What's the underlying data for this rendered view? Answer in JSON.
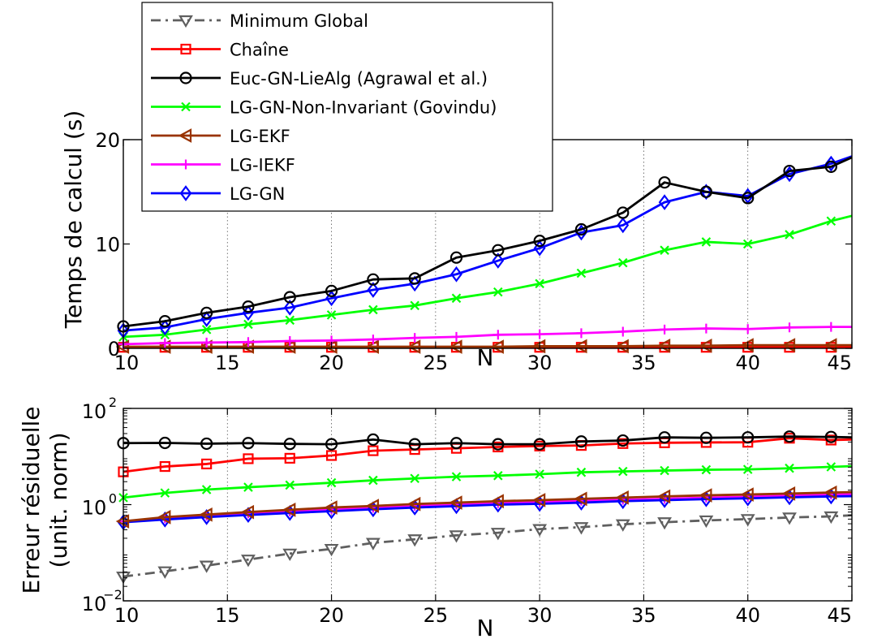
{
  "legend": {
    "entries": [
      {
        "label": "Minimum Global",
        "color": "#5f5f5f",
        "marker": "triangle-down",
        "dash": "dashdot"
      },
      {
        "label": "Chaîne",
        "color": "#ff0000",
        "marker": "square",
        "dash": "solid"
      },
      {
        "label": "Euc-GN-LieAlg (Agrawal et al.)",
        "color": "#000000",
        "marker": "circle",
        "dash": "solid"
      },
      {
        "label": "LG-GN-Non-Invariant (Govindu)",
        "color": "#00ff00",
        "marker": "x",
        "dash": "solid"
      },
      {
        "label": "LG-EKF",
        "color": "#993300",
        "marker": "triangle-left",
        "dash": "solid"
      },
      {
        "label": "LG-IEKF",
        "color": "#ff00ff",
        "marker": "plus",
        "dash": "solid"
      },
      {
        "label": "LG-GN",
        "color": "#0000ff",
        "marker": "diamond",
        "dash": "solid"
      }
    ]
  },
  "chart_data": [
    {
      "type": "line",
      "xlabel": "N",
      "ylabel": "Temps de calcul (s)",
      "xlim": [
        10,
        45
      ],
      "ylim": [
        0,
        20
      ],
      "xticks": [
        10,
        15,
        20,
        25,
        30,
        35,
        40,
        45
      ],
      "yticks": [
        0,
        10,
        20
      ],
      "xtick_labels": [
        "10",
        "15",
        "20",
        "25",
        "30",
        "35",
        "40",
        "45"
      ],
      "ytick_labels": [
        "0",
        "10",
        "20"
      ],
      "x": [
        10,
        12,
        14,
        16,
        18,
        20,
        22,
        24,
        26,
        28,
        30,
        32,
        34,
        36,
        38,
        40,
        42,
        44,
        45
      ],
      "grid": "x-dotted",
      "series": [
        {
          "name": "Chaîne",
          "color": "#ff0000",
          "marker": "square",
          "values": [
            0.1,
            0.1,
            0.1,
            0.1,
            0.1,
            0.1,
            0.1,
            0.1,
            0.1,
            0.1,
            0.1,
            0.1,
            0.1,
            0.1,
            0.1,
            0.1,
            0.1,
            0.1,
            0.1
          ]
        },
        {
          "name": "LG-EKF",
          "color": "#993300",
          "marker": "triangle-left",
          "values": [
            0.15,
            0.15,
            0.15,
            0.15,
            0.15,
            0.15,
            0.15,
            0.15,
            0.15,
            0.15,
            0.2,
            0.2,
            0.2,
            0.25,
            0.25,
            0.3,
            0.3,
            0.3,
            0.3
          ]
        },
        {
          "name": "LG-IEKF",
          "color": "#ff00ff",
          "marker": "plus",
          "values": [
            0.4,
            0.5,
            0.55,
            0.6,
            0.7,
            0.75,
            0.85,
            1.0,
            1.1,
            1.3,
            1.35,
            1.45,
            1.6,
            1.8,
            1.9,
            1.85,
            2.0,
            2.05,
            2.05
          ]
        },
        {
          "name": "LG-GN-Non-Invariant (Govindu)",
          "color": "#00ff00",
          "marker": "x",
          "values": [
            1.1,
            1.3,
            1.8,
            2.3,
            2.7,
            3.2,
            3.7,
            4.1,
            4.8,
            5.4,
            6.2,
            7.2,
            8.2,
            9.4,
            10.2,
            10.0,
            10.9,
            12.2,
            12.7
          ]
        },
        {
          "name": "LG-GN",
          "color": "#0000ff",
          "marker": "diamond",
          "values": [
            1.7,
            2.0,
            2.8,
            3.4,
            3.9,
            4.8,
            5.6,
            6.2,
            7.1,
            8.4,
            9.6,
            11.1,
            11.8,
            14.0,
            15.0,
            14.6,
            16.7,
            17.7,
            18.4
          ]
        },
        {
          "name": "Euc-GN-LieAlg (Agrawal et al.)",
          "color": "#000000",
          "marker": "circle",
          "values": [
            2.1,
            2.6,
            3.4,
            4.0,
            4.9,
            5.5,
            6.6,
            6.7,
            8.7,
            9.4,
            10.3,
            11.4,
            13.0,
            15.9,
            15.0,
            14.4,
            17.0,
            17.4,
            18.3
          ]
        }
      ]
    },
    {
      "type": "line",
      "xlabel": "N",
      "ylabel": "Erreur résiduelle (unit. norm)",
      "ylabel_lines": [
        "Erreur résiduelle",
        "(unit. norm)"
      ],
      "xlim": [
        10,
        45
      ],
      "ylim": [
        0.01,
        100
      ],
      "yscale": "log",
      "xticks": [
        10,
        15,
        20,
        25,
        30,
        35,
        40,
        45
      ],
      "xtick_labels": [
        "10",
        "15",
        "20",
        "25",
        "30",
        "35",
        "40",
        "45"
      ],
      "yticks": [
        0.01,
        1,
        100
      ],
      "ytick_labels": [
        {
          "base": "10",
          "exp": "−2"
        },
        {
          "base": "10",
          "exp": "0"
        },
        {
          "base": "10",
          "exp": "2"
        }
      ],
      "x": [
        10,
        12,
        14,
        16,
        18,
        20,
        22,
        24,
        26,
        28,
        30,
        32,
        34,
        36,
        38,
        40,
        42,
        44,
        45
      ],
      "grid": "x-dotted",
      "series": [
        {
          "name": "Minimum Global",
          "color": "#5f5f5f",
          "marker": "triangle-down",
          "dash": "dashdot",
          "values": [
            0.032,
            0.041,
            0.054,
            0.072,
            0.096,
            0.12,
            0.16,
            0.19,
            0.23,
            0.26,
            0.31,
            0.34,
            0.39,
            0.43,
            0.47,
            0.5,
            0.54,
            0.57,
            0.6
          ]
        },
        {
          "name": "LG-IEKF",
          "color": "#ff00ff",
          "marker": "plus",
          "values": [
            0.45,
            0.52,
            0.59,
            0.66,
            0.72,
            0.8,
            0.86,
            0.94,
            1.0,
            1.07,
            1.12,
            1.2,
            1.26,
            1.32,
            1.4,
            1.45,
            1.55,
            1.62,
            1.66
          ]
        },
        {
          "name": "LG-GN",
          "color": "#0000ff",
          "marker": "diamond",
          "values": [
            0.43,
            0.49,
            0.55,
            0.61,
            0.67,
            0.73,
            0.8,
            0.87,
            0.93,
            1.0,
            1.04,
            1.1,
            1.18,
            1.24,
            1.3,
            1.35,
            1.42,
            1.48,
            1.5
          ]
        },
        {
          "name": "LG-EKF",
          "color": "#993300",
          "marker": "triangle-left",
          "values": [
            0.45,
            0.55,
            0.62,
            0.7,
            0.78,
            0.87,
            0.94,
            1.03,
            1.1,
            1.18,
            1.24,
            1.32,
            1.4,
            1.48,
            1.56,
            1.62,
            1.7,
            1.78,
            1.82
          ]
        },
        {
          "name": "LG-GN-Non-Invariant (Govindu)",
          "color": "#00ff00",
          "marker": "x",
          "values": [
            1.4,
            1.75,
            2.05,
            2.3,
            2.55,
            2.85,
            3.2,
            3.5,
            3.8,
            4.0,
            4.3,
            4.7,
            4.9,
            5.1,
            5.3,
            5.4,
            5.7,
            6.1,
            6.3
          ]
        },
        {
          "name": "Chaîne",
          "color": "#ff0000",
          "marker": "square",
          "values": [
            4.8,
            6.2,
            7.0,
            9.0,
            9.2,
            10.5,
            13.2,
            14.0,
            14.8,
            15.8,
            16.5,
            17.0,
            18.6,
            19.3,
            19.6,
            19.8,
            24.0,
            22.0,
            22.5
          ]
        },
        {
          "name": "Euc-GN-LieAlg (Agrawal et al.)",
          "color": "#000000",
          "marker": "circle",
          "values": [
            19.0,
            19.2,
            18.5,
            19.0,
            18.3,
            18.0,
            22.5,
            18.0,
            19.0,
            18.0,
            18.0,
            20.5,
            21.5,
            25.0,
            24.5,
            25.0,
            26.0,
            25.5,
            25.0
          ]
        }
      ]
    }
  ]
}
